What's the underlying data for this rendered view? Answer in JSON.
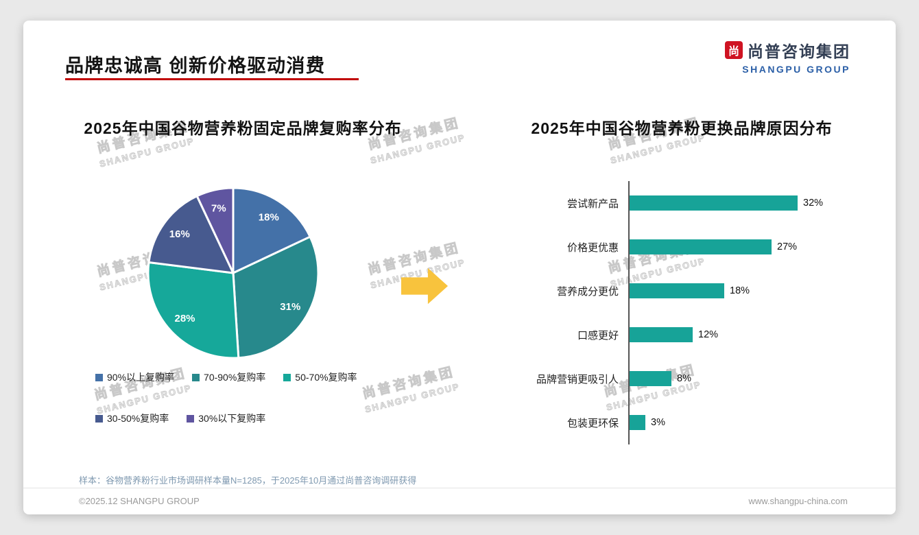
{
  "theme": {
    "accent-red": "#c00000",
    "logo-red": "#cf1322",
    "logo-dark": "#333f54",
    "logo-blue": "#2b5fa7",
    "arrow-yellow": "#f8c33d",
    "bar-teal": "#17a398",
    "note-blue": "#7f99b0",
    "footer-gray": "#9a9a9a"
  },
  "page": {
    "title": "品牌忠诚高 创新价格驱动消费",
    "logo_mark": "尚",
    "logo_cn": "尚普咨询集团",
    "logo_en": "SHANGPU GROUP",
    "watermark_cn": "尚普咨询集团",
    "watermark_en": "SHANGPU GROUP",
    "sample_note": "样本：谷物营养粉行业市场调研样本量N=1285，于2025年10月通过尚普咨询调研获得",
    "copyright": "©2025.12 SHANGPU GROUP",
    "website": "www.shangpu-china.com"
  },
  "chart_data": [
    {
      "type": "pie",
      "title": "2025年中国谷物营养粉固定品牌复购率分布",
      "labels": [
        "90%以上复购率",
        "70-90%复购率",
        "50-70%复购率",
        "30-50%复购率",
        "30%以下复购率"
      ],
      "values": [
        18,
        31,
        28,
        16,
        7
      ],
      "data_labels": [
        "18%",
        "31%",
        "28%",
        "16%",
        "7%"
      ],
      "colors": [
        "#4471a8",
        "#27898c",
        "#16a89a",
        "#475a8f",
        "#5f55a0"
      ],
      "start_angle_deg": -90,
      "direction": "clockwise",
      "legend_position": "bottom"
    },
    {
      "type": "bar",
      "title": "2025年中国谷物营养粉更换品牌原因分布",
      "orientation": "horizontal",
      "categories": [
        "尝试新产品",
        "价格更优惠",
        "营养成分更优",
        "口感更好",
        "品牌营销更吸引人",
        "包装更环保"
      ],
      "values": [
        32,
        27,
        18,
        12,
        8,
        3
      ],
      "value_labels": [
        "32%",
        "27%",
        "18%",
        "12%",
        "8%",
        "3%"
      ],
      "bar_color": "#17a398",
      "xlim": [
        0,
        32
      ]
    }
  ]
}
